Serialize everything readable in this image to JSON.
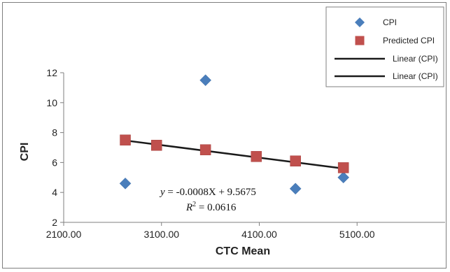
{
  "chart_data": {
    "type": "scatter",
    "title": "",
    "xlabel": "CTC Mean",
    "ylabel": "CPI",
    "xlim": [
      2100,
      6000
    ],
    "ylim": [
      2,
      12
    ],
    "x_ticks": [
      2100,
      3100,
      4100,
      5100
    ],
    "x_tick_labels": [
      "2100.00",
      "3100.00",
      "4100.00",
      "5100.00"
    ],
    "y_ticks": [
      2,
      4,
      6,
      8,
      10,
      12
    ],
    "y_tick_labels": [
      "2",
      "4",
      "6",
      "8",
      "10",
      "12"
    ],
    "grid": false,
    "legend_position": "top-right",
    "series": [
      {
        "name": "CPI",
        "marker": "diamond",
        "color": "#4a7ebb",
        "points": [
          {
            "x": 2730,
            "y": 4.6
          },
          {
            "x": 3550,
            "y": 11.5
          },
          {
            "x": 4470,
            "y": 4.25
          },
          {
            "x": 4960,
            "y": 5.0
          }
        ]
      },
      {
        "name": "Predicted CPI",
        "marker": "square",
        "color": "#c0504d",
        "points": [
          {
            "x": 2730,
            "y": 7.5
          },
          {
            "x": 3050,
            "y": 7.15
          },
          {
            "x": 3550,
            "y": 6.85
          },
          {
            "x": 4070,
            "y": 6.4
          },
          {
            "x": 4470,
            "y": 6.1
          },
          {
            "x": 4960,
            "y": 5.65
          }
        ]
      },
      {
        "name": "Linear (CPI)",
        "marker": "line",
        "color": "#1a1a1a",
        "points": [
          {
            "x": 2730,
            "y": 7.47
          },
          {
            "x": 4960,
            "y": 5.6
          }
        ]
      },
      {
        "name": "Linear (CPI)",
        "marker": "line",
        "color": "#1a1a1a",
        "points": []
      }
    ],
    "annotations": {
      "equation_lhs": "y",
      "equation_rhs": " = -0.0008X + 9.5675",
      "r2_lhs": "R",
      "r2_sup": "2",
      "r2_rhs": " = 0.0616"
    }
  }
}
